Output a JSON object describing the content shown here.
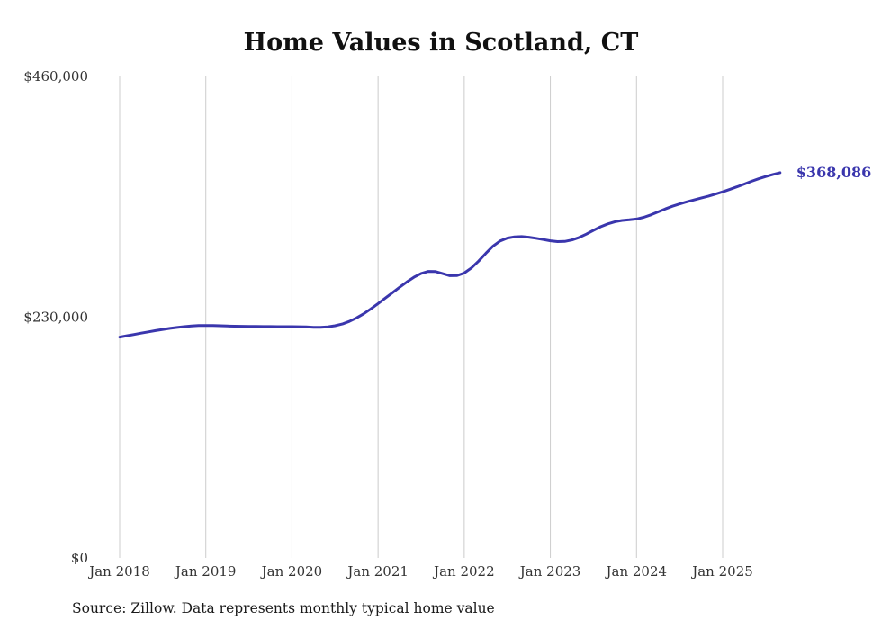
{
  "title": "Home Values in Scotland, CT",
  "source": "Source: Zillow. Data represents monthly typical home value",
  "end_label": "$368,086",
  "colors": {
    "line": "#3a36ad",
    "grid": "#cccccc",
    "axis_text": "#333333",
    "end_label": "#3a36ad"
  },
  "chart_data": {
    "type": "line",
    "title": "Home Values in Scotland, CT",
    "x_start": "2018-01",
    "x_end": "2025-09",
    "x_interval": "monthly",
    "x_tick_labels": [
      "Jan 2018",
      "Jan 2019",
      "Jan 2020",
      "Jan 2021",
      "Jan 2022",
      "Jan 2023",
      "Jan 2024",
      "Jan 2025"
    ],
    "y_ticks": [
      {
        "value": 0,
        "label": "$0"
      },
      {
        "value": 230000,
        "label": "$230,000"
      },
      {
        "value": 460000,
        "label": "$460,000"
      }
    ],
    "ylim": [
      0,
      460000
    ],
    "grid": "vertical",
    "legend": false,
    "final_value": 368086,
    "series": [
      {
        "name": "Typical home value",
        "values": [
          211000,
          212300,
          213500,
          214800,
          216000,
          217200,
          218300,
          219300,
          220200,
          221000,
          221600,
          222000,
          222100,
          222000,
          221800,
          221600,
          221400,
          221300,
          221200,
          221200,
          221100,
          221100,
          221000,
          221000,
          221000,
          220900,
          220700,
          220400,
          220400,
          220800,
          221800,
          223500,
          226000,
          229300,
          233300,
          238000,
          243000,
          248200,
          253400,
          258600,
          263600,
          268200,
          271800,
          273800,
          273600,
          271600,
          269600,
          269800,
          272200,
          277000,
          283600,
          291000,
          297800,
          302800,
          305600,
          306800,
          307000,
          306400,
          305400,
          304200,
          303000,
          302200,
          302400,
          303800,
          306200,
          309400,
          313000,
          316400,
          319200,
          321200,
          322400,
          323000,
          323800,
          325400,
          327800,
          330600,
          333400,
          336000,
          338200,
          340200,
          342000,
          343800,
          345600,
          347600,
          349800,
          352200,
          354600,
          357200,
          359800,
          362200,
          364400,
          366400,
          368086
        ]
      }
    ]
  }
}
